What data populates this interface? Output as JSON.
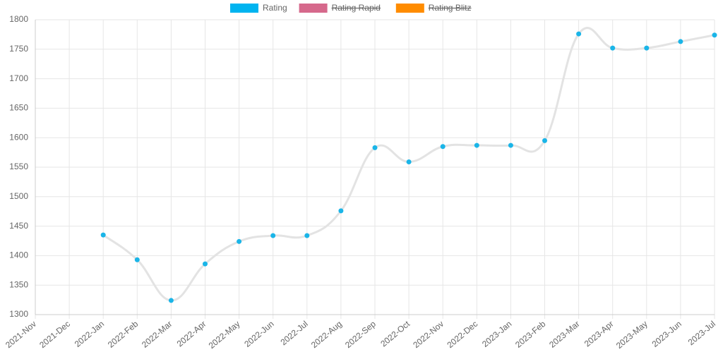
{
  "chart_data": {
    "type": "line",
    "categories": [
      "2021-Nov",
      "2021-Dec",
      "2022-Jan",
      "2022-Feb",
      "2022-Mar",
      "2022-Apr",
      "2022-May",
      "2022-Jun",
      "2022-Jul",
      "2022-Aug",
      "2022-Sep",
      "2022-Oct",
      "2022-Nov",
      "2022-Dec",
      "2023-Jan",
      "2023-Feb",
      "2023-Mar",
      "2023-Apr",
      "2023-May",
      "2023-Jun",
      "2023-Jul"
    ],
    "series": [
      {
        "name": "Rating",
        "color": "#00b4f0",
        "line_color": "#e3e3e3",
        "point_color": "#1ab5e8",
        "hidden": false,
        "values": [
          null,
          null,
          1435,
          1393,
          1324,
          1386,
          1424,
          1434,
          1434,
          1476,
          1583,
          1559,
          1585,
          1587,
          1587,
          1595,
          1776,
          1752,
          1752,
          1763,
          1774
        ]
      },
      {
        "name": "Rating Rapid",
        "color": "#d6698c",
        "hidden": true,
        "values": [
          null,
          null,
          null,
          null,
          null,
          null,
          null,
          null,
          null,
          null,
          null,
          null,
          null,
          null,
          null,
          null,
          null,
          null,
          null,
          null,
          null
        ]
      },
      {
        "name": "Rating Blitz",
        "color": "#ff8c00",
        "hidden": true,
        "values": [
          null,
          null,
          null,
          null,
          null,
          null,
          null,
          null,
          null,
          null,
          null,
          null,
          null,
          null,
          null,
          null,
          null,
          null,
          null,
          null,
          null
        ]
      }
    ],
    "ylim": [
      1300,
      1800
    ],
    "yticks": [
      1300,
      1350,
      1400,
      1450,
      1500,
      1550,
      1600,
      1650,
      1700,
      1750,
      1800
    ],
    "grid": true,
    "legend": "top"
  }
}
